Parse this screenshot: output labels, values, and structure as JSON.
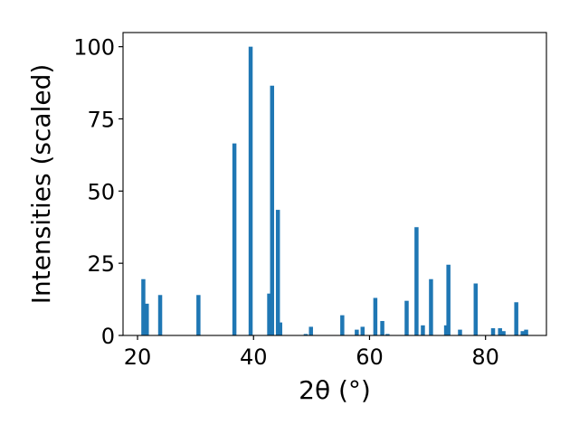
{
  "chart_data": {
    "type": "bar",
    "xlabel": "2θ (°)",
    "ylabel": "Intensities (scaled)",
    "xlim": [
      17.5,
      90.5
    ],
    "ylim": [
      0,
      104.9
    ],
    "xticks": [
      20,
      40,
      60,
      80
    ],
    "yticks": [
      0,
      25,
      50,
      75,
      100
    ],
    "bar_color": "#1f77b4",
    "bar_width": 0.7,
    "grid": false,
    "x": [
      21.0,
      21.6,
      23.9,
      30.5,
      36.7,
      39.5,
      42.7,
      43.2,
      44.2,
      44.6,
      49.0,
      49.9,
      55.3,
      57.8,
      58.8,
      61.0,
      62.2,
      63.1,
      66.4,
      68.1,
      69.2,
      70.6,
      73.2,
      73.6,
      75.6,
      78.3,
      81.3,
      82.5,
      83.1,
      85.3,
      86.4,
      87.0
    ],
    "values": [
      19.5,
      11.0,
      14.0,
      14.0,
      66.5,
      100.0,
      14.5,
      86.5,
      43.5,
      4.5,
      0.5,
      3.0,
      7.0,
      2.0,
      3.0,
      13.0,
      5.0,
      0.5,
      12.0,
      37.5,
      3.5,
      19.5,
      3.5,
      24.5,
      2.0,
      18.0,
      2.5,
      2.5,
      1.5,
      11.5,
      1.5,
      2.0
    ]
  }
}
